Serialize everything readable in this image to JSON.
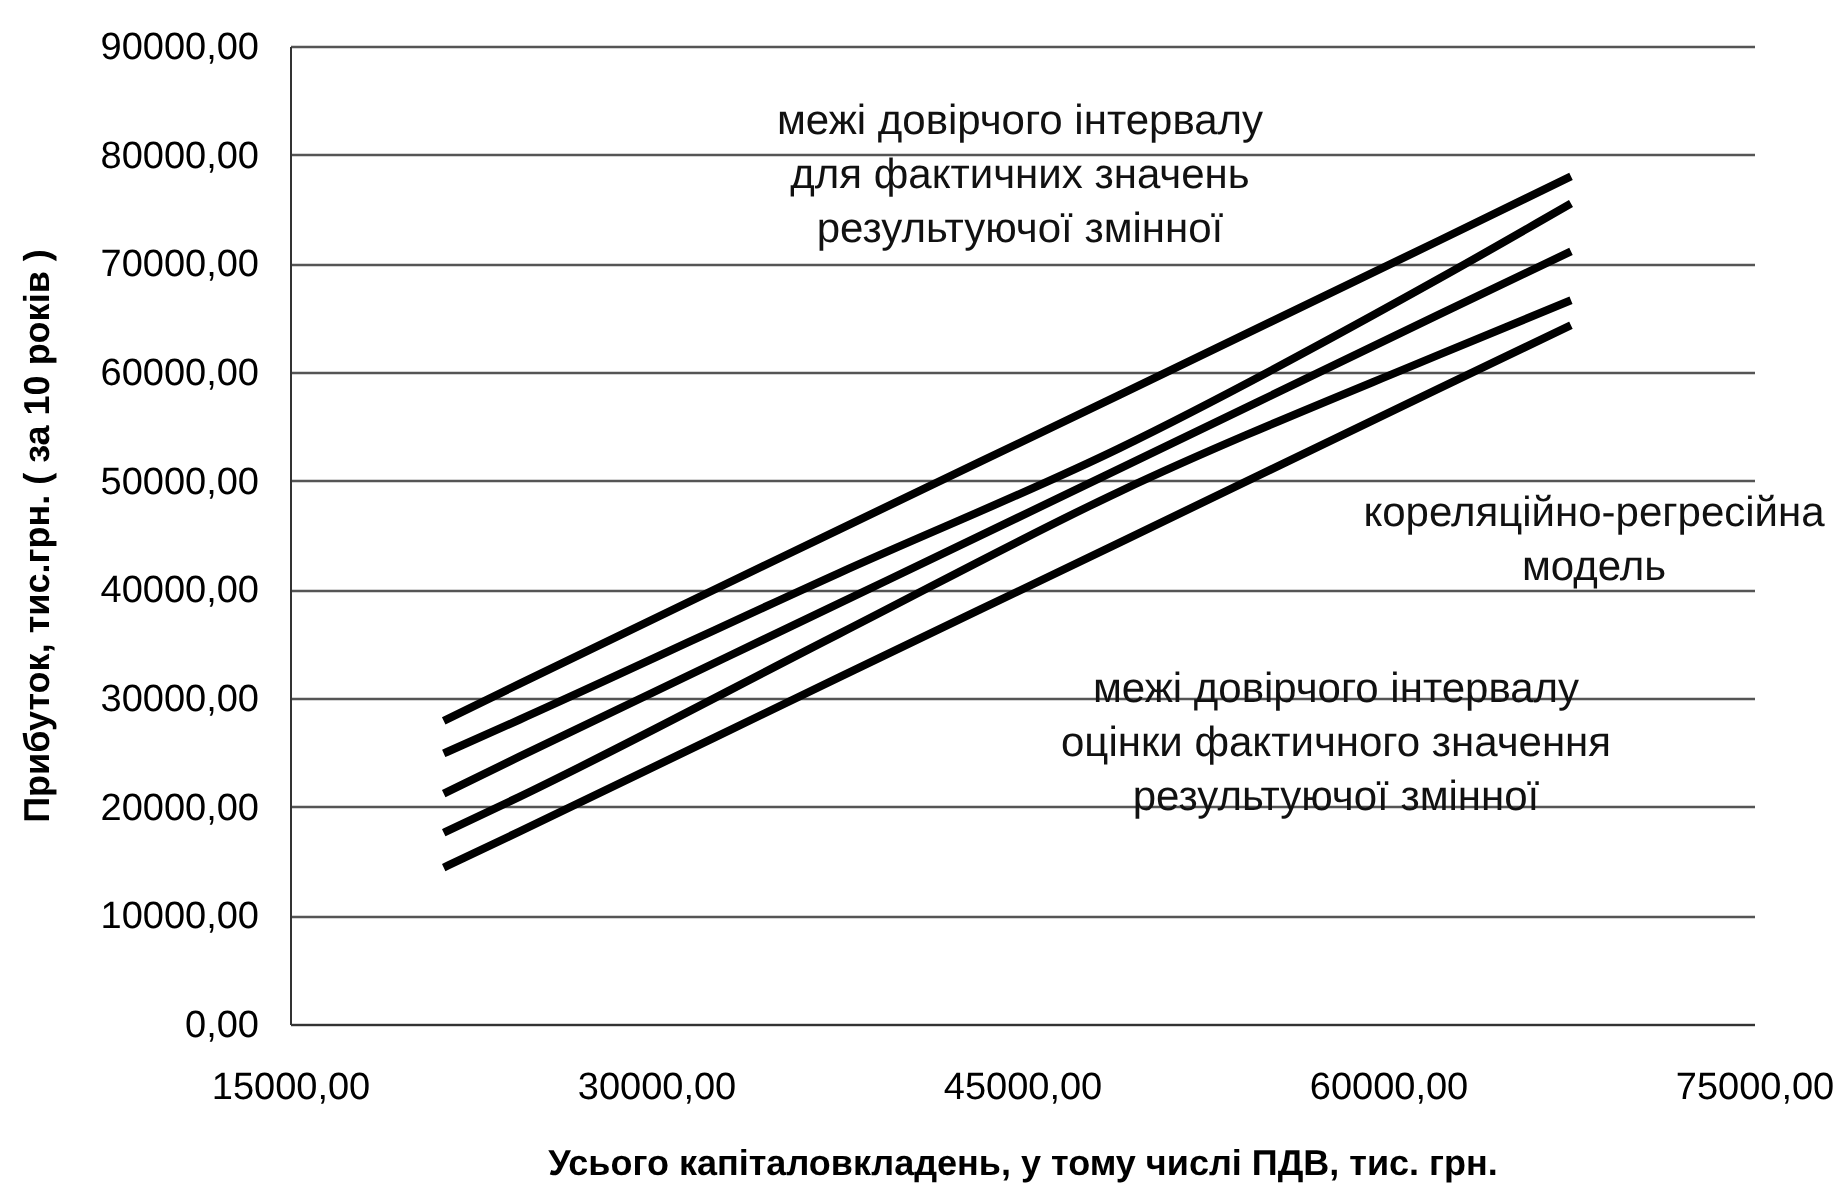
{
  "chart_data": {
    "type": "line",
    "xlabel": "Усього капіталовкладень, у тому числі ПДВ, тис. грн.",
    "ylabel": "Прибуток, тис.грн. ( за 10 років )",
    "xlim": [
      15000,
      75000
    ],
    "ylim": [
      0,
      90000
    ],
    "xticks": [
      {
        "value": 15000,
        "label": "15000,00"
      },
      {
        "value": 30000,
        "label": "30000,00"
      },
      {
        "value": 45000,
        "label": "45000,00"
      },
      {
        "value": 60000,
        "label": "60000,00"
      },
      {
        "value": 75000,
        "label": "75000,00"
      }
    ],
    "yticks": [
      {
        "value": 0,
        "label": "0,00"
      },
      {
        "value": 10000,
        "label": "10000,00"
      },
      {
        "value": 20000,
        "label": "20000,00"
      },
      {
        "value": 30000,
        "label": "30000,00"
      },
      {
        "value": 40000,
        "label": "40000,00"
      },
      {
        "value": 50000,
        "label": "50000,00"
      },
      {
        "value": 60000,
        "label": "60000,00"
      },
      {
        "value": 70000,
        "label": "70000,00"
      },
      {
        "value": 80000,
        "label": "80000,00"
      },
      {
        "value": 90000,
        "label": "90000,00"
      }
    ],
    "grid": "y",
    "legend": false,
    "marker": "none",
    "line_style": "solid",
    "x": [
      21300,
      24400,
      37500,
      49000,
      62100,
      67500
    ],
    "series": [
      {
        "color": "#000000",
        "values": [
          27900,
          31300,
          45500,
          57900,
          72100,
          78000
        ]
      },
      {
        "color": "#000000",
        "values": [
          24900,
          28000,
          41500,
          53000,
          68600,
          75500
        ]
      },
      {
        "color": "#000000",
        "values": [
          21200,
          24600,
          38700,
          51100,
          65300,
          71100
        ]
      },
      {
        "color": "#000000",
        "values": [
          17600,
          20900,
          35900,
          49000,
          61600,
          66600
        ]
      },
      {
        "color": "#000000",
        "values": [
          14400,
          17700,
          31900,
          44300,
          58500,
          64300
        ]
      }
    ],
    "annotations": [
      "межі довірчого інтервалу\nдля фактичних значень\nрезультуючої змінної",
      "кореляційно-регресійна\nмодель",
      "межі довірчого інтервалу\nоцінки фактичного значення\nрезультуючої змінної"
    ]
  }
}
